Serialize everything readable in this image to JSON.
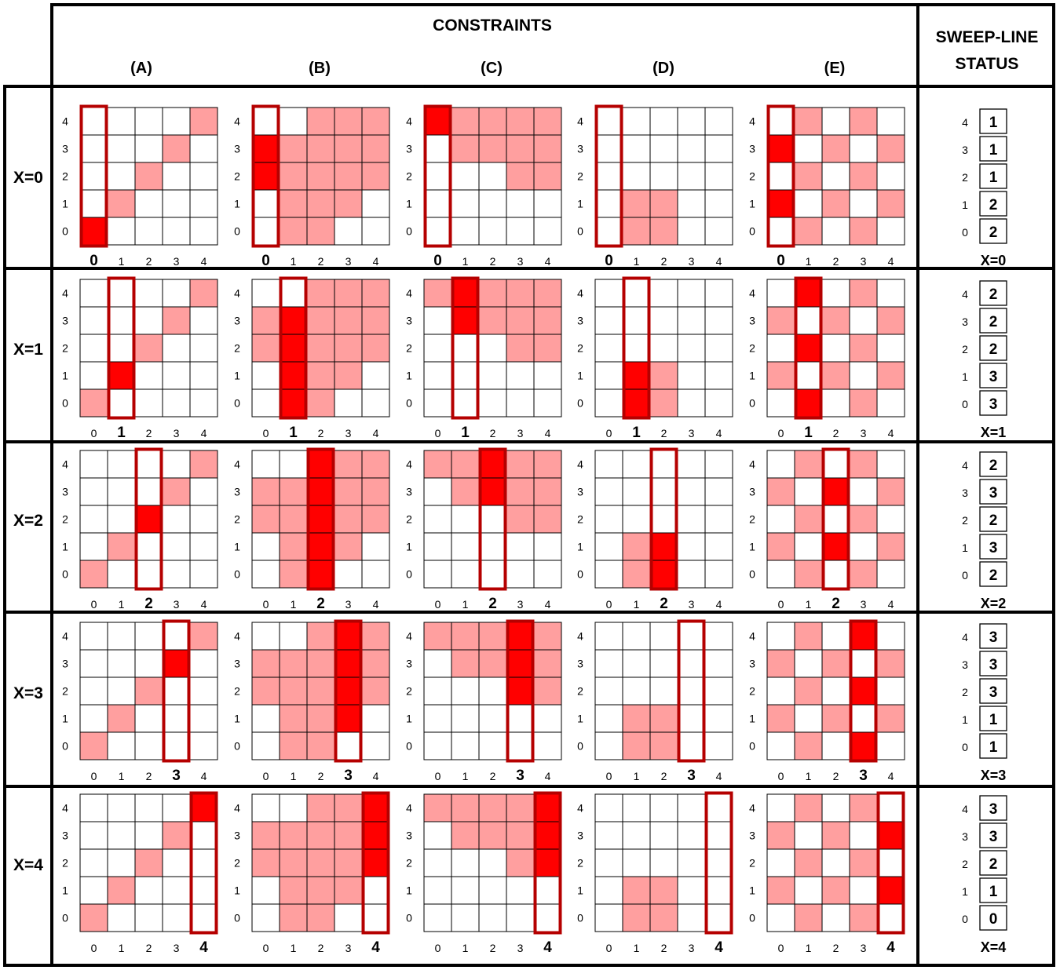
{
  "header": {
    "constraints_title": "CONSTRAINTS",
    "status_title_line1": "SWEEP-LINE",
    "status_title_line2": "STATUS"
  },
  "columns": [
    "(A)",
    "(B)",
    "(C)",
    "(D)",
    "(E)"
  ],
  "axis_ticks": [
    "0",
    "1",
    "2",
    "3",
    "4"
  ],
  "rows": [
    {
      "label": "X=0",
      "sweep_x": 0,
      "status_values": [
        "1",
        "1",
        "1",
        "2",
        "2"
      ],
      "status_caption": "X=0"
    },
    {
      "label": "X=1",
      "sweep_x": 1,
      "status_values": [
        "2",
        "2",
        "2",
        "3",
        "3"
      ],
      "status_caption": "X=1"
    },
    {
      "label": "X=2",
      "sweep_x": 2,
      "status_values": [
        "2",
        "3",
        "2",
        "3",
        "2"
      ],
      "status_caption": "X=2"
    },
    {
      "label": "X=3",
      "sweep_x": 3,
      "status_values": [
        "3",
        "3",
        "3",
        "1",
        "1"
      ],
      "status_caption": "X=3"
    },
    {
      "label": "X=4",
      "sweep_x": 4,
      "status_values": [
        "3",
        "3",
        "2",
        "1",
        "0"
      ],
      "status_caption": "X=4"
    }
  ],
  "forbidden_cells": {
    "A": [
      [
        0,
        0
      ],
      [
        1,
        1
      ],
      [
        2,
        2
      ],
      [
        3,
        3
      ],
      [
        4,
        4
      ]
    ],
    "B": [
      [
        0,
        2
      ],
      [
        0,
        3
      ],
      [
        1,
        0
      ],
      [
        1,
        1
      ],
      [
        1,
        2
      ],
      [
        1,
        3
      ],
      [
        2,
        0
      ],
      [
        2,
        1
      ],
      [
        2,
        2
      ],
      [
        2,
        3
      ],
      [
        2,
        4
      ],
      [
        3,
        1
      ],
      [
        3,
        2
      ],
      [
        3,
        3
      ],
      [
        3,
        4
      ],
      [
        4,
        2
      ],
      [
        4,
        3
      ],
      [
        4,
        4
      ]
    ],
    "C": [
      [
        0,
        4
      ],
      [
        1,
        3
      ],
      [
        1,
        4
      ],
      [
        2,
        3
      ],
      [
        2,
        4
      ],
      [
        3,
        2
      ],
      [
        3,
        3
      ],
      [
        3,
        4
      ],
      [
        4,
        2
      ],
      [
        4,
        3
      ],
      [
        4,
        4
      ]
    ],
    "D": [
      [
        1,
        0
      ],
      [
        1,
        1
      ],
      [
        2,
        0
      ],
      [
        2,
        1
      ]
    ],
    "E": [
      [
        0,
        1
      ],
      [
        0,
        3
      ],
      [
        1,
        0
      ],
      [
        1,
        2
      ],
      [
        1,
        4
      ],
      [
        2,
        1
      ],
      [
        2,
        3
      ],
      [
        3,
        0
      ],
      [
        3,
        2
      ],
      [
        3,
        4
      ],
      [
        4,
        1
      ],
      [
        4,
        3
      ]
    ]
  },
  "colors": {
    "frame": "#000000",
    "grid_line": "#000000",
    "forbidden_fill": "#ff9f9f",
    "hit_fill": "#ff0000",
    "sweep_outline": "#b50000",
    "cell_fill": "#ffffff"
  }
}
